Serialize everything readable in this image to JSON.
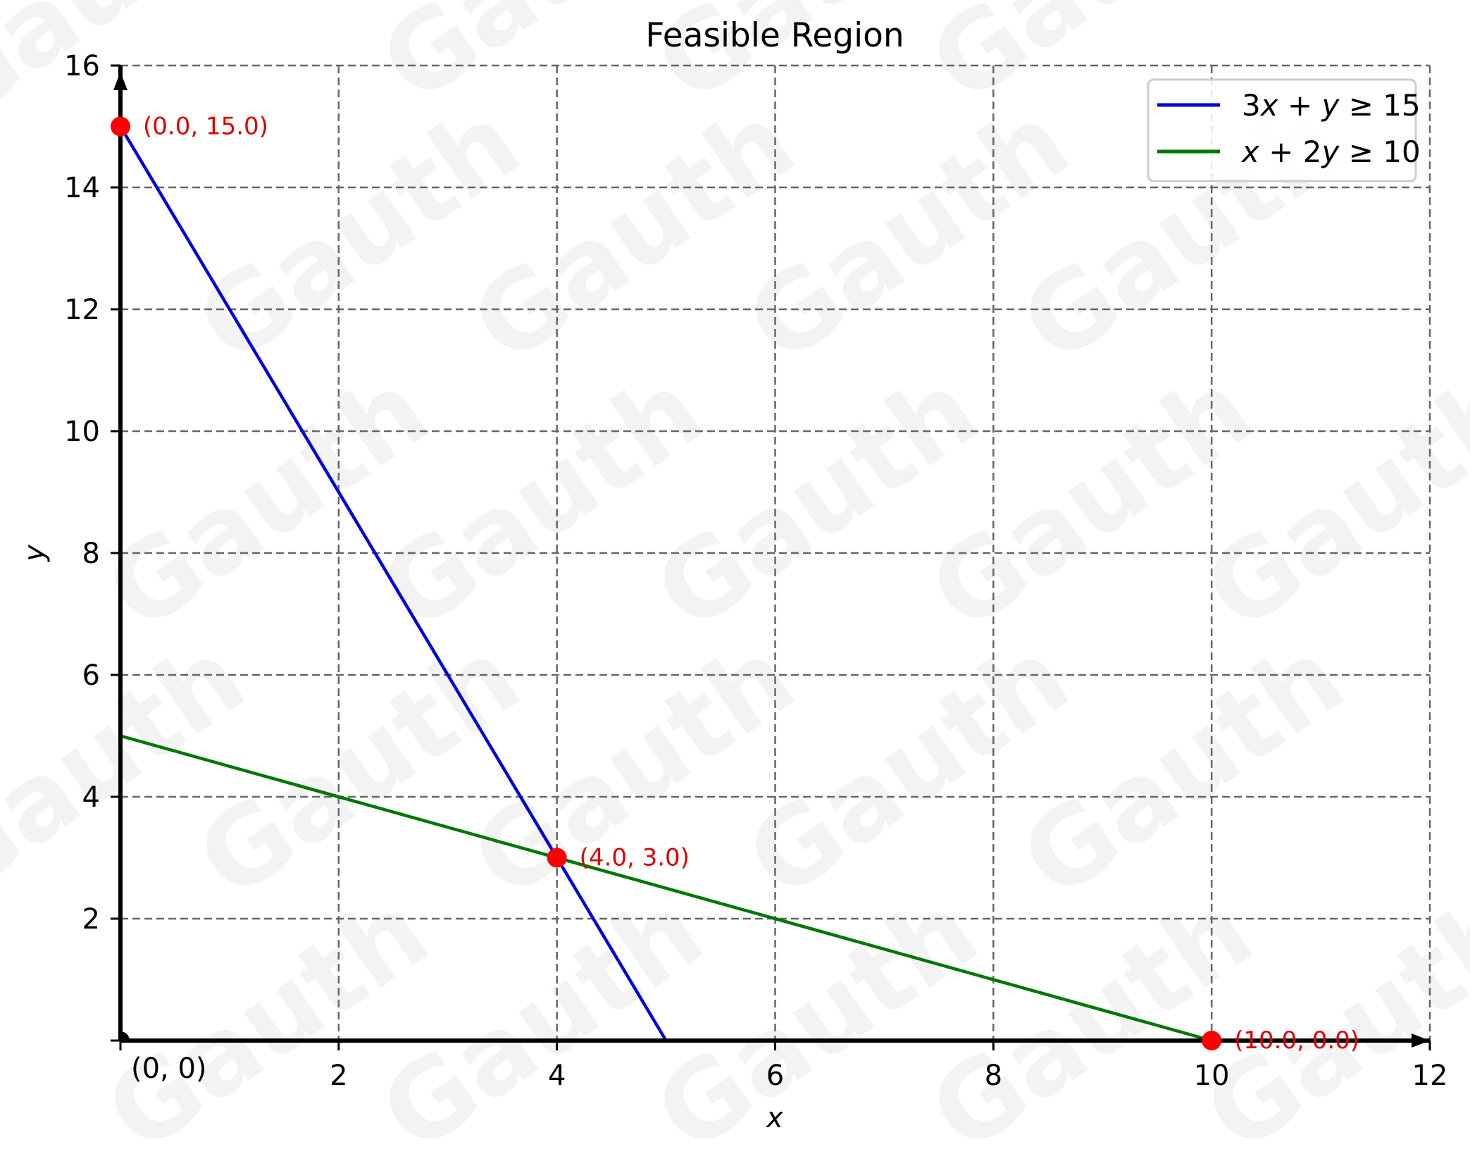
{
  "chart_data": {
    "type": "line",
    "title": "Feasible Region",
    "xlabel": "x",
    "ylabel": "y",
    "xlim": [
      0,
      12
    ],
    "ylim": [
      0,
      16
    ],
    "x_ticks": [
      2,
      4,
      6,
      8,
      10,
      12
    ],
    "y_ticks": [
      2,
      4,
      6,
      8,
      10,
      12,
      14,
      16
    ],
    "grid": true,
    "grid_style": "dashed",
    "legend_position": "upper right",
    "series": [
      {
        "name": "3x + y ≥ 15",
        "color": "#0000dd",
        "x": [
          0,
          5
        ],
        "y": [
          15,
          0
        ]
      },
      {
        "name": "x + 2y ≥ 10",
        "color": "#007700",
        "x": [
          0,
          10
        ],
        "y": [
          5,
          0
        ]
      }
    ],
    "points": [
      {
        "x": 0,
        "y": 15,
        "label": "(0.0, 15.0)",
        "color": "#ff0000"
      },
      {
        "x": 4,
        "y": 3,
        "label": "(4.0, 3.0)",
        "color": "#ff0000"
      },
      {
        "x": 10,
        "y": 0,
        "label": "(10.0, 0.0)",
        "color": "#ff0000"
      }
    ],
    "origin_label": "(0, 0)",
    "watermark": "Gauth"
  },
  "labels": {
    "title": "Feasible Region",
    "xlabel": "x",
    "ylabel": "y",
    "origin": "(0, 0)",
    "legend": [
      {
        "lhs": [
          "3",
          "x",
          " + ",
          "y"
        ],
        "rel": " ≥ 15"
      },
      {
        "lhs": [
          "",
          "x",
          " + 2",
          "y"
        ],
        "rel": " ≥ 10"
      }
    ]
  },
  "colors": {
    "blue_line": "#0000dd",
    "green_line": "#007700",
    "point": "#ff0000",
    "point_label": "#dd0000",
    "grid": "#666666",
    "axis": "#000000"
  }
}
